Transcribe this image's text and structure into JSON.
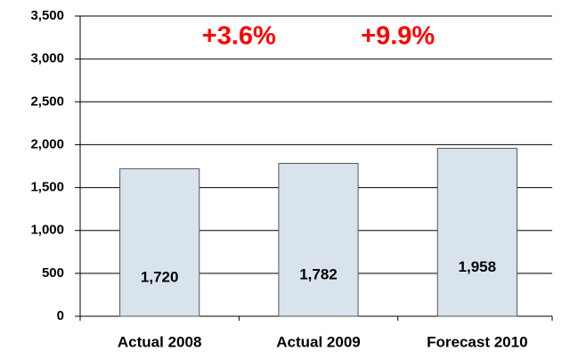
{
  "chart_data": {
    "type": "bar",
    "categories": [
      "Actual 2008",
      "Actual 2009",
      "Forecast 2010"
    ],
    "values": [
      1720,
      1782,
      1958
    ],
    "value_labels": [
      "1,720",
      "1,782",
      "1,958"
    ],
    "color": "#d9e3ee",
    "ylim": [
      0,
      3500
    ],
    "yticks": [
      0,
      500,
      {
        "value": 1000,
        "label": "1,000"
      },
      {
        "value": 1500,
        "label": "1,500"
      },
      {
        "value": 2000,
        "label": "2,000"
      },
      {
        "value": 2500,
        "label": "2,500"
      },
      {
        "value": 3000,
        "label": "3,000"
      },
      {
        "value": 3500,
        "label": "3,500"
      }
    ],
    "grid": true,
    "annotations": [
      "+3.6%",
      "+9.9%"
    ],
    "annotation_color": "#ff0000"
  }
}
